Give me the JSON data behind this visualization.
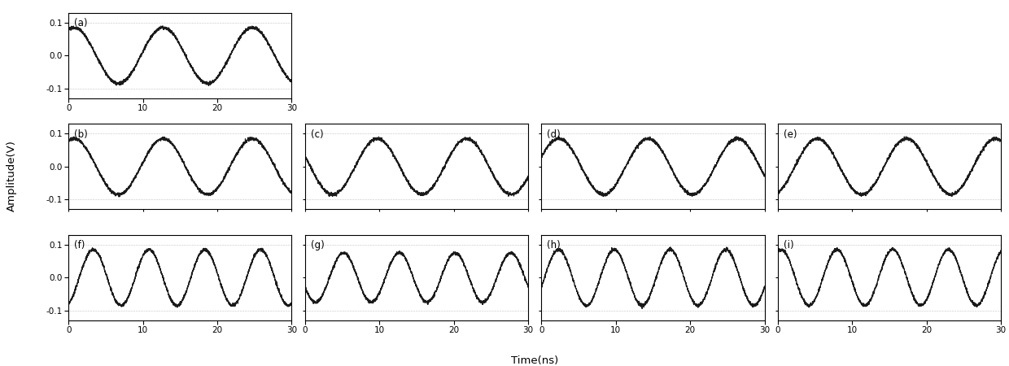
{
  "xlabel": "Time(ns)",
  "ylabel": "Amplitude(V)",
  "xlim": [
    0,
    30
  ],
  "ylim": [
    -0.13,
    0.13
  ],
  "yticks": [
    -0.1,
    0.0,
    0.1
  ],
  "xticks": [
    0,
    10,
    20,
    30
  ],
  "line_color": "#1a1a1a",
  "line_width": 0.9,
  "noise_amplitude": 0.0025,
  "panels": [
    {
      "label": "(a)",
      "row": 0,
      "col": 0,
      "freq": 0.0833,
      "phase": 1.2,
      "amp": 0.085
    },
    {
      "label": "(b)",
      "row": 1,
      "col": 0,
      "freq": 0.0833,
      "phase": 1.2,
      "amp": 0.085
    },
    {
      "label": "(c)",
      "row": 1,
      "col": 1,
      "freq": 0.0833,
      "phase": 2.76,
      "amp": 0.085
    },
    {
      "label": "(d)",
      "row": 1,
      "col": 2,
      "freq": 0.0833,
      "phase": 0.35,
      "amp": 0.085
    },
    {
      "label": "(e)",
      "row": 1,
      "col": 3,
      "freq": 0.0833,
      "phase": -1.2,
      "amp": 0.085
    },
    {
      "label": "(f)",
      "row": 2,
      "col": 0,
      "freq": 0.1333,
      "phase": -1.2,
      "amp": 0.085
    },
    {
      "label": "(g)",
      "row": 2,
      "col": 1,
      "freq": 0.1333,
      "phase": -2.76,
      "amp": 0.075
    },
    {
      "label": "(h)",
      "row": 2,
      "col": 2,
      "freq": 0.1333,
      "phase": -0.35,
      "amp": 0.085
    },
    {
      "label": "(i)",
      "row": 2,
      "col": 3,
      "freq": 0.1333,
      "phase": 1.2,
      "amp": 0.085
    }
  ],
  "background_color": "#ffffff",
  "label_fontsize": 8.5,
  "tick_fontsize": 7.5,
  "axis_label_fontsize": 9.5
}
